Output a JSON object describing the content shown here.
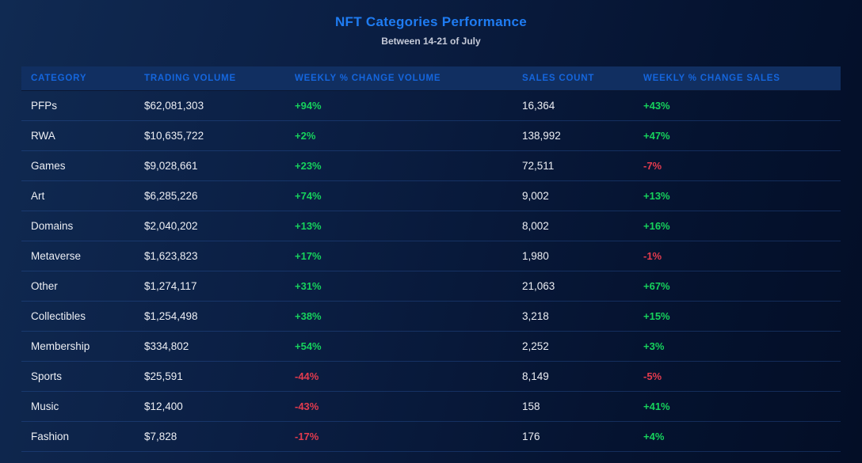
{
  "chart_data": {
    "type": "table",
    "title": "NFT Categories Performance",
    "subtitle": "Between 14-21 of July",
    "columns": [
      "CATEGORY",
      "TRADING VOLUME",
      "WEEKLY % CHANGE VOLUME",
      "SALES COUNT",
      "WEEKLY % CHANGE SALES"
    ],
    "rows": [
      {
        "category": "PFPs",
        "trading_volume": "$62,081,303",
        "volume_change": "+94%",
        "sales_count": "16,364",
        "sales_change": "+43%"
      },
      {
        "category": "RWA",
        "trading_volume": "$10,635,722",
        "volume_change": "+2%",
        "sales_count": "138,992",
        "sales_change": "+47%"
      },
      {
        "category": "Games",
        "trading_volume": "$9,028,661",
        "volume_change": "+23%",
        "sales_count": "72,511",
        "sales_change": "-7%"
      },
      {
        "category": "Art",
        "trading_volume": "$6,285,226",
        "volume_change": "+74%",
        "sales_count": "9,002",
        "sales_change": "+13%"
      },
      {
        "category": "Domains",
        "trading_volume": "$2,040,202",
        "volume_change": "+13%",
        "sales_count": "8,002",
        "sales_change": "+16%"
      },
      {
        "category": "Metaverse",
        "trading_volume": "$1,623,823",
        "volume_change": "+17%",
        "sales_count": "1,980",
        "sales_change": "-1%"
      },
      {
        "category": "Other",
        "trading_volume": "$1,274,117",
        "volume_change": "+31%",
        "sales_count": "21,063",
        "sales_change": "+67%"
      },
      {
        "category": "Collectibles",
        "trading_volume": "$1,254,498",
        "volume_change": "+38%",
        "sales_count": "3,218",
        "sales_change": "+15%"
      },
      {
        "category": "Membership",
        "trading_volume": "$334,802",
        "volume_change": "+54%",
        "sales_count": "2,252",
        "sales_change": "+3%"
      },
      {
        "category": "Sports",
        "trading_volume": "$25,591",
        "volume_change": "-44%",
        "sales_count": "8,149",
        "sales_change": "-5%"
      },
      {
        "category": "Music",
        "trading_volume": "$12,400",
        "volume_change": "-43%",
        "sales_count": "158",
        "sales_change": "+41%"
      },
      {
        "category": "Fashion",
        "trading_volume": "$7,828",
        "volume_change": "-17%",
        "sales_count": "176",
        "sales_change": "+4%"
      }
    ],
    "colors": {
      "positive": "#16d25c",
      "negative": "#e43b4e",
      "title_accent": "#1f7cf2",
      "header_text": "#1566dd",
      "header_background": "#112f61"
    },
    "layout": {
      "legend": "none",
      "grid": "horizontal-dividers"
    }
  }
}
